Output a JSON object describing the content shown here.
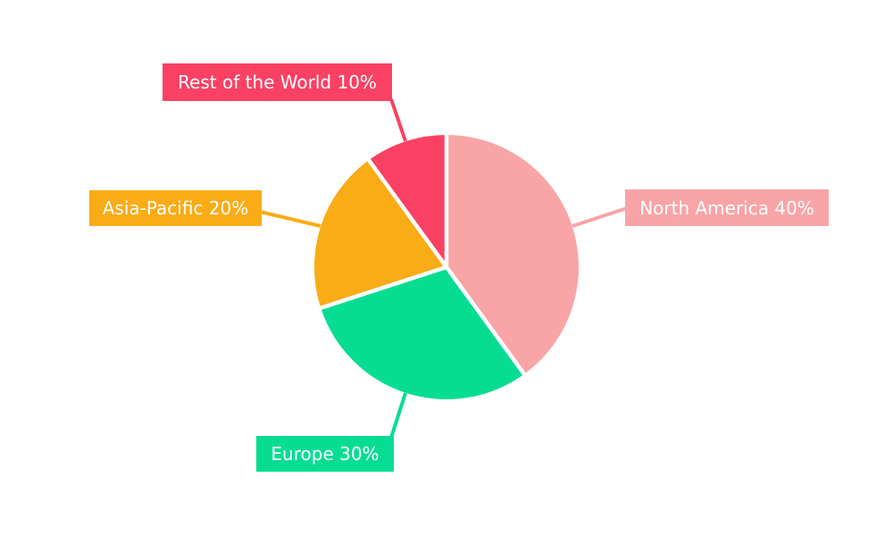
{
  "chart_data": {
    "type": "pie",
    "categories": [
      "North America",
      "Europe",
      "Asia-Pacific",
      "Rest of the World"
    ],
    "values": [
      40,
      30,
      20,
      10
    ],
    "unit": "%",
    "labels": [
      "North America 40%",
      "Europe 30%",
      "Asia-Pacific 20%",
      "Rest of the World 10%"
    ],
    "colors": [
      "#F9A4A7",
      "#06DD93",
      "#FAAC16",
      "#FB4163"
    ],
    "label_text_color": "#FFFFFF",
    "separator_color": "#FFFFFF",
    "background": "#FFFFFF",
    "start_angle": "12-oclock",
    "direction": "clockwise",
    "legend_position": "none",
    "label_style": "outside-boxed-callouts-with-leader-lines"
  }
}
